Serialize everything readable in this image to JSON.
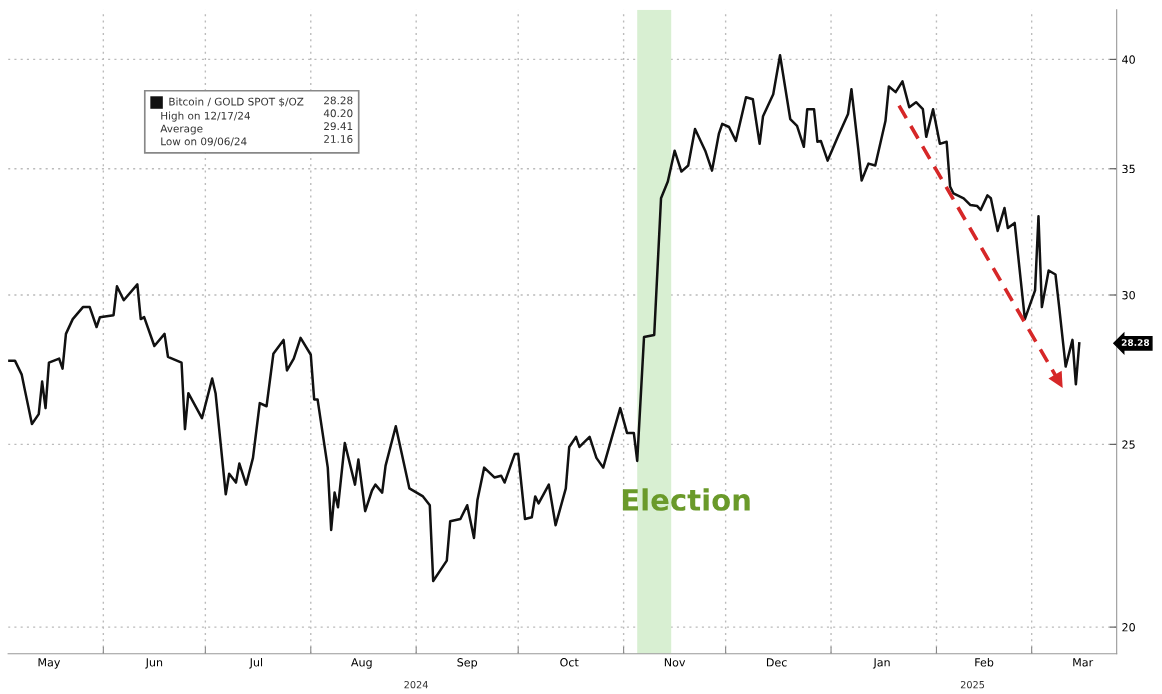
{
  "chart_data": {
    "type": "line",
    "log": true,
    "grid": true,
    "legend": "top left",
    "x": [
      "2024-05-04",
      "2024-05-06",
      "2024-05-08",
      "2024-05-09",
      "2024-05-11",
      "2024-05-13",
      "2024-05-14",
      "2024-05-15",
      "2024-05-16",
      "2024-05-19",
      "2024-05-20",
      "2024-05-21",
      "2024-05-23",
      "2024-05-26",
      "2024-05-28",
      "2024-05-30",
      "2024-05-31",
      "2024-06-04",
      "2024-06-05",
      "2024-06-07",
      "2024-06-11",
      "2024-06-12",
      "2024-06-13",
      "2024-06-16",
      "2024-06-19",
      "2024-06-20",
      "2024-06-24",
      "2024-06-25",
      "2024-06-26",
      "2024-06-30",
      "2024-07-03",
      "2024-07-04",
      "2024-07-07",
      "2024-07-08",
      "2024-07-10",
      "2024-07-11",
      "2024-07-13",
      "2024-07-15",
      "2024-07-17",
      "2024-07-19",
      "2024-07-21",
      "2024-07-24",
      "2024-07-25",
      "2024-07-27",
      "2024-07-29",
      "2024-08-01",
      "2024-08-02",
      "2024-08-03",
      "2024-08-06",
      "2024-08-07",
      "2024-08-08",
      "2024-08-09",
      "2024-08-11",
      "2024-08-14",
      "2024-08-15",
      "2024-08-17",
      "2024-08-19",
      "2024-08-20",
      "2024-08-22",
      "2024-08-23",
      "2024-08-26",
      "2024-08-30",
      "2024-09-03",
      "2024-09-05",
      "2024-09-06",
      "2024-09-10",
      "2024-09-11",
      "2024-09-14",
      "2024-09-16",
      "2024-09-18",
      "2024-09-19",
      "2024-09-21",
      "2024-09-24",
      "2024-09-26",
      "2024-09-27",
      "2024-09-30",
      "2024-10-01",
      "2024-10-03",
      "2024-10-05",
      "2024-10-06",
      "2024-10-07",
      "2024-10-10",
      "2024-10-12",
      "2024-10-15",
      "2024-10-16",
      "2024-10-18",
      "2024-10-19",
      "2024-10-22",
      "2024-10-24",
      "2024-10-26",
      "2024-10-31",
      "2024-11-02",
      "2024-11-04",
      "2024-11-05",
      "2024-11-07",
      "2024-11-10",
      "2024-11-12",
      "2024-11-14",
      "2024-11-16",
      "2024-11-18",
      "2024-11-20",
      "2024-11-22",
      "2024-11-25",
      "2024-11-27",
      "2024-11-29",
      "2024-11-30",
      "2024-12-02",
      "2024-12-04",
      "2024-12-07",
      "2024-12-09",
      "2024-12-11",
      "2024-12-12",
      "2024-12-15",
      "2024-12-17",
      "2024-12-20",
      "2024-12-22",
      "2024-12-24",
      "2024-12-25",
      "2024-12-27",
      "2024-12-28",
      "2024-12-29",
      "2024-12-31",
      "2025-01-03",
      "2025-01-06",
      "2025-01-07",
      "2025-01-09",
      "2025-01-10",
      "2025-01-12",
      "2025-01-14",
      "2025-01-17",
      "2025-01-18",
      "2025-01-20",
      "2025-01-22",
      "2025-01-24",
      "2025-01-26",
      "2025-01-28",
      "2025-01-29",
      "2025-01-31",
      "2025-02-02",
      "2025-02-04",
      "2025-02-05",
      "2025-02-06",
      "2025-02-09",
      "2025-02-11",
      "2025-02-13",
      "2025-02-14",
      "2025-02-16",
      "2025-02-17",
      "2025-02-19",
      "2025-02-21",
      "2025-02-22",
      "2025-02-24",
      "2025-02-27",
      "2025-03-02",
      "2025-03-03",
      "2025-03-04",
      "2025-03-06",
      "2025-03-08",
      "2025-03-09",
      "2025-03-11",
      "2025-03-13",
      "2025-03-14",
      "2025-03-15"
    ],
    "series": [
      {
        "name": "Bitcoin / GOLD SPOT $/OZ",
        "color": "#111111",
        "values": [
          27.69,
          27.69,
          27.22,
          26.67,
          25.63,
          25.94,
          26.99,
          26.13,
          27.62,
          27.76,
          27.42,
          28.61,
          29.13,
          29.56,
          29.56,
          28.85,
          29.2,
          29.27,
          30.32,
          29.81,
          30.39,
          29.13,
          29.2,
          28.19,
          28.61,
          27.82,
          27.62,
          25.47,
          26.61,
          25.81,
          27.09,
          26.61,
          23.52,
          24.12,
          23.86,
          24.42,
          23.8,
          24.59,
          26.29,
          26.19,
          27.92,
          28.4,
          27.36,
          27.76,
          28.47,
          27.89,
          26.41,
          26.41,
          24.3,
          22.52,
          23.57,
          23.15,
          25.04,
          23.8,
          24.54,
          23.04,
          23.63,
          23.8,
          23.57,
          24.36,
          25.56,
          23.69,
          23.46,
          23.21,
          21.16,
          21.69,
          22.76,
          22.82,
          23.21,
          22.3,
          23.35,
          24.3,
          24.01,
          24.06,
          23.86,
          24.71,
          24.71,
          22.82,
          22.87,
          23.46,
          23.26,
          23.8,
          22.65,
          23.69,
          24.92,
          25.23,
          24.92,
          25.23,
          24.59,
          24.3,
          26.13,
          25.35,
          25.35,
          24.5,
          28.5,
          28.57,
          33.76,
          34.46,
          35.78,
          34.88,
          35.14,
          36.74,
          35.78,
          34.92,
          36.52,
          36.97,
          36.83,
          36.21,
          38.19,
          38.1,
          36.08,
          37.32,
          38.33,
          40.2,
          37.19,
          36.88,
          35.95,
          37.64,
          37.64,
          36.17,
          36.21,
          35.35,
          36.39,
          37.42,
          38.57,
          35.86,
          34.5,
          35.22,
          35.14,
          37.1,
          38.7,
          38.43,
          38.94,
          37.73,
          37.96,
          37.64,
          36.39,
          37.64,
          36.08,
          36.17,
          34.25,
          33.96,
          33.76,
          33.48,
          33.44,
          33.28,
          33.88,
          33.76,
          32.44,
          33.36,
          32.56,
          32.76,
          29.13,
          30.17,
          33.03,
          29.56,
          30.91,
          30.76,
          29.66,
          27.49,
          28.4,
          26.9,
          28.28
        ]
      },
      {
        "type": "line",
        "color": "#d62728",
        "line_style": "dashed",
        "x": [
          "2025-01-21",
          "2025-03-09"
        ],
        "values": [
          37.8,
          27.0
        ]
      }
    ],
    "xlim": [
      "2024-05-04",
      "2025-03-26"
    ],
    "xticks": [
      {
        "value": "2024-05-16",
        "label": "May"
      },
      {
        "value": "2024-06-01",
        "label": null
      },
      {
        "value": "2024-06-16",
        "label": "Jun"
      },
      {
        "value": "2024-07-01",
        "label": null
      },
      {
        "value": "2024-07-16",
        "label": "Jul"
      },
      {
        "value": "2024-08-01",
        "label": null
      },
      {
        "value": "2024-08-16",
        "label": "Aug"
      },
      {
        "value": "2024-09-01",
        "label": null
      },
      {
        "value": "2024-09-16",
        "label": "Sep"
      },
      {
        "value": "2024-10-01",
        "label": null
      },
      {
        "value": "2024-10-16",
        "label": "Oct"
      },
      {
        "value": "2024-11-01",
        "label": null
      },
      {
        "value": "2024-11-16",
        "label": "Nov"
      },
      {
        "value": "2024-12-01",
        "label": null
      },
      {
        "value": "2024-12-16",
        "label": "Dec"
      },
      {
        "value": "2025-01-01",
        "label": null
      },
      {
        "value": "2025-01-16",
        "label": "Jan"
      },
      {
        "value": "2025-02-01",
        "label": null
      },
      {
        "value": "2025-02-15",
        "label": "Feb"
      },
      {
        "value": "2025-03-01",
        "label": null
      },
      {
        "value": "2025-03-16",
        "label": "Mar"
      }
    ],
    "ylim": [
      19.36,
      42.5
    ],
    "yticks": [
      20,
      25,
      30,
      35,
      40
    ],
    "bands": [
      {
        "axis": "x",
        "from": "2024-11-05",
        "to": "2024-11-15",
        "label": "Election",
        "color": "#d8efd2"
      }
    ],
    "annotations": [
      "28.28",
      "High on 12/17/24",
      "40.20",
      "Average",
      "29.41",
      "Low on 09/06/24",
      "21.16",
      "2024",
      "2025",
      "28.28"
    ]
  }
}
